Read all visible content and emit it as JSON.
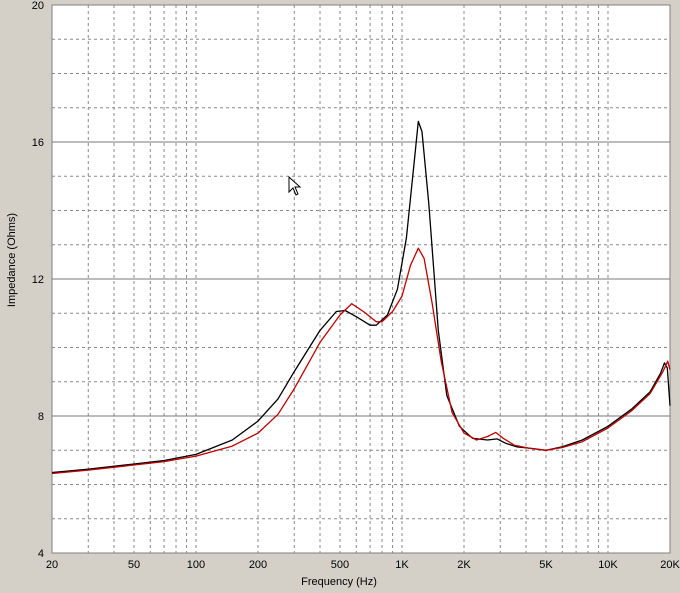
{
  "chart_data": {
    "type": "line",
    "xlabel": "Frequency (Hz)",
    "ylabel": "Impedance (Ohms)",
    "xscale": "log",
    "xlim": [
      20,
      20000
    ],
    "ylim": [
      4,
      20
    ],
    "grid": true,
    "x_ticks": [
      {
        "value": 20,
        "label": "20"
      },
      {
        "value": 50,
        "label": "50"
      },
      {
        "value": 100,
        "label": "100"
      },
      {
        "value": 200,
        "label": "200"
      },
      {
        "value": 500,
        "label": "500"
      },
      {
        "value": 1000,
        "label": "1K"
      },
      {
        "value": 2000,
        "label": "2K"
      },
      {
        "value": 5000,
        "label": "5K"
      },
      {
        "value": 10000,
        "label": "10K"
      },
      {
        "value": 20000,
        "label": "20K"
      }
    ],
    "y_ticks": [
      {
        "value": 4,
        "label": "4"
      },
      {
        "value": 8,
        "label": "8"
      },
      {
        "value": 12,
        "label": "12"
      },
      {
        "value": 16,
        "label": "16"
      },
      {
        "value": 20,
        "label": "20"
      }
    ],
    "series": [
      {
        "color": "#000000",
        "points": [
          [
            20,
            6.35
          ],
          [
            30,
            6.45
          ],
          [
            50,
            6.6
          ],
          [
            70,
            6.7
          ],
          [
            100,
            6.88
          ],
          [
            150,
            7.3
          ],
          [
            200,
            7.85
          ],
          [
            250,
            8.5
          ],
          [
            300,
            9.3
          ],
          [
            400,
            10.5
          ],
          [
            480,
            11.05
          ],
          [
            530,
            11.08
          ],
          [
            600,
            10.9
          ],
          [
            700,
            10.65
          ],
          [
            750,
            10.65
          ],
          [
            850,
            10.95
          ],
          [
            950,
            11.7
          ],
          [
            1050,
            13.2
          ],
          [
            1150,
            15.5
          ],
          [
            1200,
            16.6
          ],
          [
            1250,
            16.3
          ],
          [
            1350,
            14.2
          ],
          [
            1500,
            10.5
          ],
          [
            1650,
            8.6
          ],
          [
            1900,
            7.7
          ],
          [
            2200,
            7.35
          ],
          [
            2600,
            7.3
          ],
          [
            2900,
            7.33
          ],
          [
            3200,
            7.2
          ],
          [
            3600,
            7.1
          ],
          [
            4300,
            7.05
          ],
          [
            5000,
            7.0
          ],
          [
            6000,
            7.1
          ],
          [
            7500,
            7.3
          ],
          [
            10000,
            7.7
          ],
          [
            13000,
            8.2
          ],
          [
            16000,
            8.7
          ],
          [
            18000,
            9.25
          ],
          [
            18800,
            9.55
          ],
          [
            19400,
            9.4
          ],
          [
            20000,
            8.3
          ]
        ]
      },
      {
        "color": "#c00000",
        "points": [
          [
            20,
            6.32
          ],
          [
            30,
            6.42
          ],
          [
            50,
            6.57
          ],
          [
            70,
            6.67
          ],
          [
            100,
            6.83
          ],
          [
            150,
            7.12
          ],
          [
            200,
            7.5
          ],
          [
            250,
            8.05
          ],
          [
            300,
            8.8
          ],
          [
            400,
            10.15
          ],
          [
            500,
            10.95
          ],
          [
            570,
            11.28
          ],
          [
            650,
            11.05
          ],
          [
            750,
            10.75
          ],
          [
            800,
            10.75
          ],
          [
            900,
            11.05
          ],
          [
            1000,
            11.5
          ],
          [
            1100,
            12.4
          ],
          [
            1200,
            12.9
          ],
          [
            1280,
            12.6
          ],
          [
            1400,
            11.3
          ],
          [
            1550,
            9.6
          ],
          [
            1750,
            8.1
          ],
          [
            2000,
            7.5
          ],
          [
            2300,
            7.3
          ],
          [
            2600,
            7.4
          ],
          [
            2850,
            7.52
          ],
          [
            3100,
            7.35
          ],
          [
            3500,
            7.15
          ],
          [
            4200,
            7.05
          ],
          [
            5000,
            7.0
          ],
          [
            6000,
            7.08
          ],
          [
            7500,
            7.25
          ],
          [
            10000,
            7.65
          ],
          [
            13000,
            8.15
          ],
          [
            16000,
            8.65
          ],
          [
            18500,
            9.3
          ],
          [
            19500,
            9.6
          ],
          [
            20000,
            9.35
          ]
        ]
      }
    ]
  }
}
